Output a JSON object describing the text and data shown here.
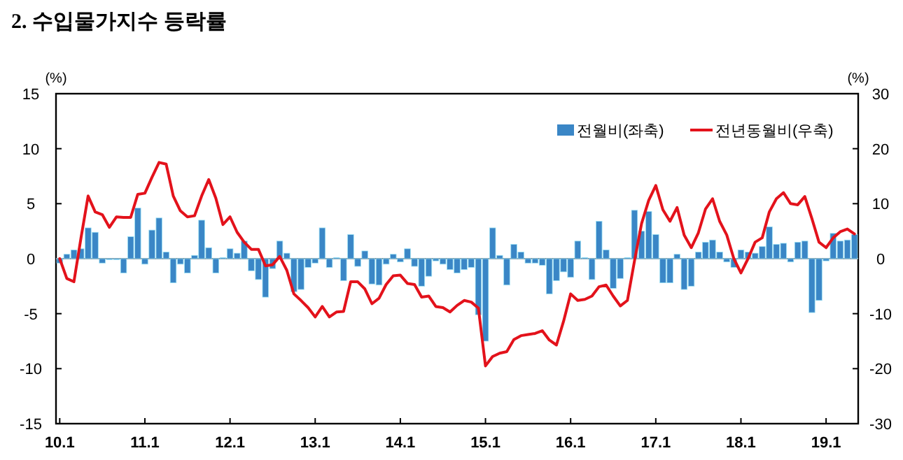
{
  "chart_data": {
    "type": "bar",
    "title": "2. 수입물가지수 등락률",
    "ylabel": "(%)",
    "y2label": "(%)",
    "categories": [
      "10.1",
      null,
      null,
      null,
      null,
      null,
      null,
      null,
      null,
      null,
      null,
      null,
      "11.1",
      null,
      null,
      null,
      null,
      null,
      null,
      null,
      null,
      null,
      null,
      null,
      "12.1",
      null,
      null,
      null,
      null,
      null,
      null,
      null,
      null,
      null,
      null,
      null,
      "13.1",
      null,
      null,
      null,
      null,
      null,
      null,
      null,
      null,
      null,
      null,
      null,
      "14.1",
      null,
      null,
      null,
      null,
      null,
      null,
      null,
      null,
      null,
      null,
      null,
      "15.1",
      null,
      null,
      null,
      null,
      null,
      null,
      null,
      null,
      null,
      null,
      null,
      "16.1",
      null,
      null,
      null,
      null,
      null,
      null,
      null,
      null,
      null,
      null,
      null,
      "17.1",
      null,
      null,
      null,
      null,
      null,
      null,
      null,
      null,
      null,
      null,
      null,
      "18.1",
      null,
      null,
      null,
      null,
      null,
      null,
      null,
      null,
      null,
      null,
      null,
      "19.1",
      null,
      null,
      null,
      null
    ],
    "ylim": [
      -15,
      15
    ],
    "yticks": [
      -15,
      -10,
      -5,
      0,
      5,
      10,
      15
    ],
    "y2lim": [
      -30,
      30
    ],
    "y2ticks": [
      -30,
      -20,
      -10,
      0,
      10,
      20,
      30
    ],
    "legend": "top right",
    "series": [
      {
        "name": "전월비(좌축)",
        "color": "#3a86c6",
        "values": [
          -0.4,
          0.4,
          0.8,
          0.9,
          2.8,
          2.4,
          -0.4,
          -0.1,
          -0.1,
          -1.3,
          2.0,
          4.6,
          -0.5,
          2.6,
          3.7,
          0.6,
          -2.2,
          -0.5,
          -1.3,
          0.3,
          3.5,
          1.0,
          -1.3,
          0.1,
          0.9,
          0.5,
          1.6,
          -1.1,
          -1.9,
          -3.5,
          -0.9,
          1.6,
          0.5,
          -3.0,
          -2.8,
          -0.8,
          -0.4,
          2.8,
          -0.8,
          0.1,
          -2.0,
          2.2,
          -0.7,
          0.7,
          -2.3,
          -2.4,
          -0.5,
          0.4,
          -0.3,
          0.9,
          -0.7,
          -2.5,
          -1.6,
          -0.2,
          -0.5,
          -1.0,
          -1.3,
          -1.0,
          -0.8,
          -5.1,
          -7.5,
          2.8,
          0.3,
          -2.4,
          1.3,
          0.6,
          -0.4,
          -0.4,
          -0.6,
          -3.2,
          -2.0,
          -1.2,
          -1.7,
          1.6,
          0.1,
          -1.9,
          3.4,
          0.8,
          -2.7,
          -1.8,
          0.1,
          4.4,
          2.5,
          4.3,
          2.2,
          -2.2,
          -2.2,
          0.4,
          -2.8,
          -2.5,
          0.6,
          1.5,
          1.7,
          0.6,
          -0.3,
          -0.8,
          0.8,
          0.6,
          0.5,
          1.1,
          2.9,
          1.3,
          1.4,
          -0.3,
          1.5,
          1.6,
          -4.9,
          -3.8,
          -0.2,
          2.3,
          1.6,
          1.7,
          2.2
        ]
      },
      {
        "name": "전년동월비(우축)",
        "type": "line",
        "axis": "y2",
        "color": "#e3121b",
        "values": [
          0,
          -3.6,
          -4.2,
          3.8,
          11.4,
          8.5,
          8,
          5.7,
          7.6,
          7.5,
          7.5,
          11.7,
          11.9,
          14.8,
          17.5,
          17.2,
          11.4,
          8.7,
          7.6,
          7.8,
          11.4,
          14.4,
          11,
          6.2,
          7.6,
          4.8,
          3,
          1.7,
          1.7,
          -1.3,
          -1.1,
          0.4,
          -2.1,
          -6.4,
          -7.6,
          -8.9,
          -10.6,
          -8.7,
          -10.6,
          -9.7,
          -9.6,
          -4.2,
          -4.2,
          -5.5,
          -8.2,
          -7.2,
          -4.7,
          -3.1,
          -3,
          -4.5,
          -4.7,
          -7,
          -6.8,
          -8.7,
          -8.9,
          -9.7,
          -8.5,
          -7.6,
          -7.9,
          -9,
          -19.5,
          -17.8,
          -17.2,
          -16.9,
          -14.7,
          -14,
          -13.8,
          -13.6,
          -13.1,
          -14.8,
          -15.7,
          -11.4,
          -6.4,
          -7.6,
          -7.4,
          -6.8,
          -5.1,
          -4.8,
          -6.8,
          -8.6,
          -7.6,
          -0.4,
          6.4,
          10.6,
          13.3,
          8.9,
          6.8,
          9.3,
          4.3,
          2.0,
          4.7,
          9.0,
          10.9,
          6.8,
          4.3,
          0,
          -2.6,
          0,
          3.0,
          3.8,
          8.5,
          10.9,
          12,
          10,
          9.8,
          11.3,
          7.3,
          3,
          2,
          3.8,
          4.9,
          5.4,
          4.5
        ]
      }
    ]
  }
}
